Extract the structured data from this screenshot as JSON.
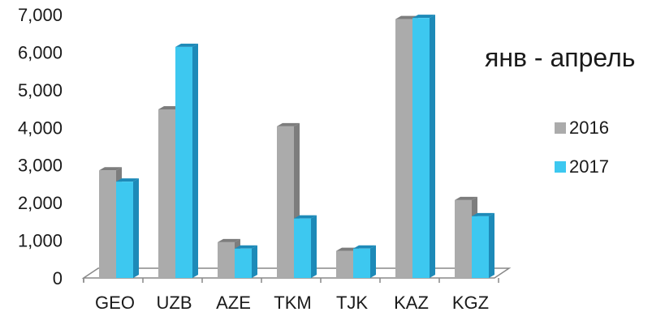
{
  "chart_data": {
    "type": "bar",
    "categories": [
      "GEO",
      "UZB",
      "AZE",
      "TKM",
      "TJK",
      "KAZ",
      "KGZ"
    ],
    "series": [
      {
        "name": "2016",
        "values": [
          2860,
          4480,
          950,
          4030,
          720,
          6880,
          2070
        ],
        "color": "#ababab",
        "side": "#7d7d7d"
      },
      {
        "name": "2017",
        "values": [
          2560,
          6140,
          780,
          1580,
          780,
          6910,
          1640
        ],
        "color": "#3dc8f0",
        "side": "#1d8ab8"
      }
    ],
    "ylim": [
      0,
      7000
    ],
    "yticks": [
      "0",
      "1,000",
      "2,000",
      "3,000",
      "4,000",
      "5,000",
      "6,000",
      "7,000"
    ],
    "annotation": "янв - апрель",
    "legend_position": "right"
  }
}
